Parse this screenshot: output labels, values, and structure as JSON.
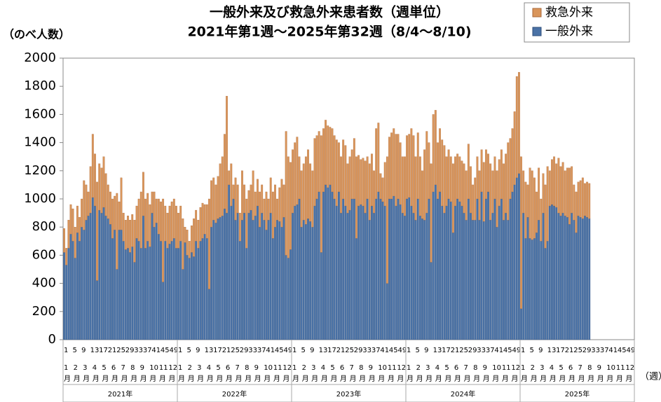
{
  "chart_data": {
    "type": "stacked_bar",
    "title": "一般外来及び救急外来患者数（週単位）",
    "subtitle": "2021年第1週〜2025年第32週（8/4〜8/10)",
    "y_label": "（のべ人数）",
    "x_unit": "（週）",
    "ylim": [
      0,
      2000
    ],
    "yticks": [
      0,
      200,
      400,
      600,
      800,
      1000,
      1200,
      1400,
      1600,
      1800,
      2000
    ],
    "grid": false,
    "legend": "top-right",
    "months": [
      "1月",
      "2月",
      "3月",
      "4月",
      "5月",
      "6月",
      "7月",
      "8月",
      "9月",
      "10月",
      "11月",
      "12月"
    ],
    "years": [
      "2021年",
      "2022年",
      "2023年",
      "2024年",
      "2025年"
    ],
    "categories": [
      "1",
      null,
      null,
      null,
      "5",
      null,
      null,
      null,
      "9",
      null,
      null,
      null,
      "13",
      null,
      null,
      null,
      "17",
      null,
      null,
      null,
      "21",
      null,
      null,
      null,
      "25",
      null,
      null,
      null,
      "29",
      null,
      null,
      null,
      "33",
      null,
      null,
      null,
      "37",
      null,
      null,
      null,
      "41",
      null,
      null,
      null,
      "45",
      null,
      null,
      null,
      "49",
      null,
      null,
      null,
      "1",
      null,
      null,
      null,
      "5",
      null,
      null,
      null,
      "9",
      null,
      null,
      null,
      "13",
      null,
      null,
      null,
      "17",
      null,
      null,
      null,
      "21",
      null,
      null,
      null,
      "25",
      null,
      null,
      null,
      "29",
      null,
      null,
      null,
      "33",
      null,
      null,
      null,
      "37",
      null,
      null,
      null,
      "41",
      null,
      null,
      null,
      "45",
      null,
      null,
      null,
      "49",
      null,
      null,
      null,
      "1",
      null,
      null,
      null,
      "5",
      null,
      null,
      null,
      "9",
      null,
      null,
      null,
      "13",
      null,
      null,
      null,
      "17",
      null,
      null,
      null,
      "21",
      null,
      null,
      null,
      "25",
      null,
      null,
      null,
      "29",
      null,
      null,
      null,
      "33",
      null,
      null,
      null,
      "37",
      null,
      null,
      null,
      "41",
      null,
      null,
      null,
      "45",
      null,
      null,
      null,
      "49",
      null,
      null,
      null,
      "1",
      null,
      null,
      null,
      "5",
      null,
      null,
      null,
      "9",
      null,
      null,
      null,
      "13",
      null,
      null,
      null,
      "17",
      null,
      null,
      null,
      "21",
      null,
      null,
      null,
      "25",
      null,
      null,
      null,
      "29",
      null,
      null,
      null,
      "33",
      null,
      null,
      null,
      "37",
      null,
      null,
      null,
      "41",
      null,
      null,
      null,
      "45",
      null,
      null,
      null,
      "49",
      null,
      null,
      null,
      "1",
      null,
      null,
      null,
      "5",
      null,
      null,
      null,
      "9",
      null,
      null,
      null,
      "13",
      null,
      null,
      null,
      "17",
      null,
      null,
      null,
      "21",
      null,
      null,
      null,
      "25",
      null,
      null,
      null,
      "29",
      null,
      null,
      null,
      "33",
      null,
      null,
      null,
      "37",
      null,
      null,
      null,
      "41",
      null,
      null,
      null,
      "45",
      null,
      null,
      null,
      "49",
      null,
      null,
      null
    ],
    "series": [
      {
        "name": "一般外来",
        "color": "#4a72a6",
        "values": [
          620,
          530,
          650,
          750,
          700,
          580,
          760,
          700,
          800,
          780,
          850,
          880,
          900,
          1010,
          950,
          420,
          920,
          900,
          940,
          880,
          860,
          820,
          720,
          780,
          500,
          780,
          780,
          700,
          640,
          650,
          620,
          660,
          550,
          720,
          700,
          650,
          880,
          650,
          700,
          660,
          900,
          800,
          830,
          750,
          700,
          410,
          700,
          650,
          680,
          700,
          720,
          650,
          650,
          700,
          500,
          690,
          600,
          580,
          620,
          590,
          700,
          650,
          700,
          720,
          750,
          720,
          360,
          800,
          850,
          830,
          860,
          870,
          880,
          930,
          900,
          1100,
          950,
          1000,
          850,
          900,
          700,
          850,
          900,
          650,
          900,
          920,
          850,
          880,
          950,
          800,
          900,
          850,
          780,
          850,
          900,
          720,
          800,
          850,
          840,
          800,
          870,
          600,
          580,
          640,
          900,
          950,
          960,
          1000,
          800,
          850,
          820,
          860,
          840,
          800,
          950,
          1000,
          1050,
          620,
          1050,
          1100,
          1080,
          1100,
          1050,
          1000,
          950,
          1050,
          900,
          1000,
          950,
          900,
          920,
          1000,
          1000,
          720,
          950,
          960,
          950,
          900,
          1000,
          850,
          950,
          900,
          1000,
          1050,
          1000,
          980,
          950,
          400,
          1000,
          1000,
          1020,
          950,
          1000,
          960,
          900,
          880,
          1000,
          1010,
          950,
          900,
          850,
          1000,
          880,
          860,
          850,
          900,
          1000,
          550,
          1050,
          1100,
          1000,
          1050,
          950,
          900,
          950,
          1000,
          980,
          760,
          950,
          1000,
          980,
          950,
          900,
          850,
          1000,
          900,
          850,
          850,
          1000,
          850,
          1050,
          840,
          1000,
          1050,
          850,
          900,
          1000,
          800,
          950,
          1000,
          850,
          900,
          850,
          1000,
          1050,
          1100,
          1150,
          1180,
          220,
          900,
          720,
          870,
          720,
          710,
          720,
          760,
          850,
          700,
          900,
          650,
          700,
          950,
          960,
          950,
          940,
          900,
          880,
          900,
          880,
          870,
          820,
          900,
          850,
          760,
          880,
          870,
          860,
          880,
          870,
          860,
          null,
          null,
          null,
          null,
          null,
          null,
          null,
          null,
          null,
          null,
          null,
          null,
          null,
          null,
          null,
          null,
          null,
          null,
          null,
          null
        ]
      },
      {
        "name": "救急外来",
        "color": "#d9955a",
        "values": [
          170,
          120,
          200,
          210,
          230,
          220,
          190,
          170,
          200,
          350,
          250,
          170,
          330,
          450,
          370,
          700,
          330,
          320,
          360,
          300,
          240,
          230,
          280,
          240,
          540,
          200,
          370,
          200,
          210,
          230,
          230,
          230,
          300,
          230,
          300,
          400,
          310,
          350,
          340,
          300,
          150,
          250,
          170,
          250,
          280,
          590,
          250,
          250,
          270,
          280,
          280,
          300,
          250,
          250,
          360,
          110,
          180,
          120,
          190,
          270,
          220,
          200,
          240,
          250,
          210,
          240,
          640,
          330,
          300,
          270,
          300,
          380,
          420,
          530,
          830,
          100,
          300,
          100,
          300,
          200,
          200,
          350,
          200,
          350,
          160,
          180,
          350,
          170,
          190,
          250,
          200,
          150,
          270,
          150,
          250,
          330,
          300,
          150,
          240,
          340,
          230,
          880,
          720,
          620,
          450,
          450,
          480,
          300,
          400,
          400,
          480,
          490,
          410,
          400,
          480,
          450,
          430,
          830,
          450,
          460,
          440,
          410,
          450,
          450,
          470,
          350,
          400,
          420,
          430,
          350,
          380,
          350,
          430,
          580,
          360,
          320,
          340,
          370,
          300,
          400,
          370,
          300,
          500,
          490,
          180,
          170,
          310,
          900,
          440,
          470,
          480,
          510,
          460,
          440,
          400,
          420,
          450,
          450,
          550,
          550,
          450,
          470,
          420,
          340,
          500,
          580,
          400,
          700,
          550,
          530,
          400,
          450,
          470,
          480,
          350,
          350,
          320,
          490,
          350,
          320,
          320,
          320,
          350,
          350,
          390,
          330,
          250,
          300,
          300,
          350,
          300,
          420,
          350,
          270,
          400,
          300,
          300,
          400,
          330,
          350,
          400,
          420,
          550,
          430,
          450,
          520,
          720,
          720,
          1080,
          300,
          400,
          230,
          500,
          490,
          430,
          290,
          370,
          300,
          280,
          450,
          530,
          250,
          320,
          350,
          310,
          390,
          350,
          360,
          320,
          350,
          400,
          330,
          250,
          290,
          240,
          260,
          290,
          230,
          250,
          250,
          null,
          null,
          null,
          null,
          null,
          null,
          null,
          null,
          null,
          null,
          null,
          null,
          null,
          null,
          null,
          null,
          null,
          null,
          null,
          null
        ]
      }
    ]
  }
}
